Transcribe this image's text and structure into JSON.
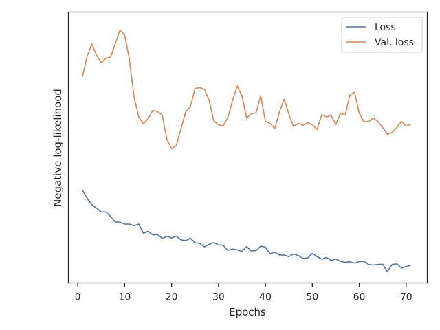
{
  "chart_data": {
    "type": "line",
    "xlabel": "Epochs",
    "ylabel": "Negative log-likelihood",
    "xlim": [
      -2,
      74.5
    ],
    "ylim": [
      0,
      1
    ],
    "x_ticks": [
      0,
      10,
      20,
      30,
      40,
      50,
      60,
      70
    ],
    "y_ticks_shown": false,
    "grid": false,
    "legend_position": "top-right",
    "x": [
      1,
      2,
      3,
      4,
      5,
      6,
      7,
      8,
      9,
      10,
      11,
      12,
      13,
      14,
      15,
      16,
      17,
      18,
      19,
      20,
      21,
      22,
      23,
      24,
      25,
      26,
      27,
      28,
      29,
      30,
      31,
      32,
      33,
      34,
      35,
      36,
      37,
      38,
      39,
      40,
      41,
      42,
      43,
      44,
      45,
      46,
      47,
      48,
      49,
      50,
      51,
      52,
      53,
      54,
      55,
      56,
      57,
      58,
      59,
      60,
      61,
      62,
      63,
      64,
      65,
      66,
      67,
      68,
      69,
      70,
      71
    ],
    "series": [
      {
        "name": "Loss",
        "color": "#4c72b0",
        "values": [
          0.342,
          0.313,
          0.288,
          0.276,
          0.262,
          0.262,
          0.245,
          0.225,
          0.224,
          0.217,
          0.217,
          0.211,
          0.217,
          0.183,
          0.191,
          0.177,
          0.179,
          0.164,
          0.172,
          0.166,
          0.173,
          0.159,
          0.156,
          0.165,
          0.148,
          0.146,
          0.133,
          0.142,
          0.149,
          0.14,
          0.139,
          0.12,
          0.125,
          0.122,
          0.116,
          0.134,
          0.118,
          0.119,
          0.136,
          0.132,
          0.108,
          0.113,
          0.103,
          0.103,
          0.097,
          0.107,
          0.101,
          0.091,
          0.092,
          0.109,
          0.097,
          0.088,
          0.094,
          0.083,
          0.088,
          0.08,
          0.076,
          0.078,
          0.073,
          0.079,
          0.08,
          0.068,
          0.066,
          0.068,
          0.069,
          0.042,
          0.068,
          0.07,
          0.055,
          0.06,
          0.065
        ]
      },
      {
        "name": "Val. loss",
        "color": "#dd8452",
        "values": [
          0.762,
          0.837,
          0.882,
          0.84,
          0.814,
          0.829,
          0.834,
          0.883,
          0.934,
          0.914,
          0.826,
          0.686,
          0.612,
          0.587,
          0.606,
          0.637,
          0.632,
          0.62,
          0.53,
          0.496,
          0.507,
          0.569,
          0.631,
          0.65,
          0.718,
          0.721,
          0.715,
          0.674,
          0.598,
          0.583,
          0.58,
          0.611,
          0.673,
          0.727,
          0.691,
          0.608,
          0.624,
          0.628,
          0.691,
          0.596,
          0.588,
          0.57,
          0.632,
          0.679,
          0.623,
          0.577,
          0.589,
          0.582,
          0.591,
          0.584,
          0.566,
          0.621,
          0.613,
          0.618,
          0.585,
          0.626,
          0.62,
          0.693,
          0.704,
          0.626,
          0.595,
          0.596,
          0.608,
          0.596,
          0.573,
          0.549,
          0.555,
          0.574,
          0.596,
          0.579,
          0.585
        ]
      }
    ]
  }
}
